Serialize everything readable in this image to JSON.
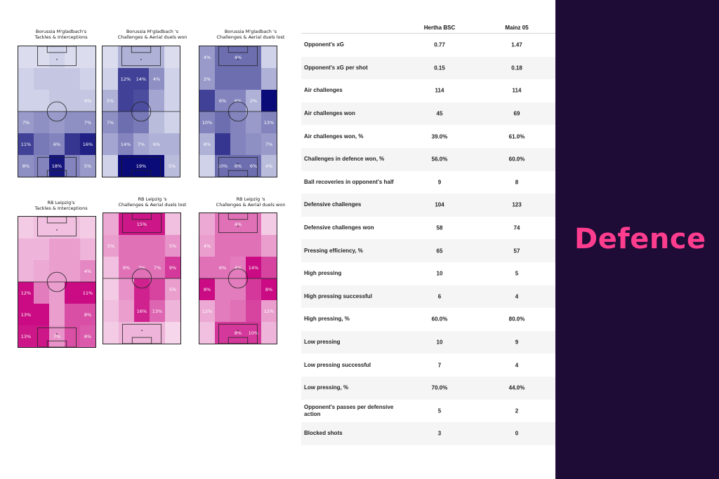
{
  "heatmaps": [
    {
      "title_1": "Borussia M'gladbach's",
      "title_2": "Tackles & Interceptions",
      "palette": "blue",
      "levels": [
        [
          0.05,
          0.05,
          0.1,
          0.05,
          0.05
        ],
        [
          0.1,
          0.15,
          0.15,
          0.15,
          0.1
        ],
        [
          0.1,
          0.1,
          0.15,
          0.15,
          0.15
        ],
        [
          0.35,
          0.4,
          0.35,
          0.4,
          0.4
        ],
        [
          0.75,
          0.5,
          0.45,
          0.8,
          0.9
        ],
        [
          0.4,
          0.45,
          0.95,
          0.45,
          0.35
        ]
      ],
      "labels": [
        [
          "",
          "",
          "",
          "",
          ""
        ],
        [
          "",
          "",
          "",
          "",
          ""
        ],
        [
          "",
          "",
          "",
          "",
          "4%"
        ],
        [
          "7%",
          "",
          "",
          "",
          "7%"
        ],
        [
          "11%",
          "",
          "6%",
          "",
          "16%"
        ],
        [
          "8%",
          "",
          "18%",
          "",
          "5%"
        ]
      ]
    },
    {
      "title_1": "Borussia M'gladbach 's",
      "title_2": "Challenges & Aerial duels won",
      "palette": "blue",
      "levels": [
        [
          0.05,
          0.25,
          0.25,
          0.25,
          0.05
        ],
        [
          0.1,
          0.75,
          0.75,
          0.4,
          0.1
        ],
        [
          0.25,
          0.75,
          0.7,
          0.3,
          0.1
        ],
        [
          0.4,
          0.55,
          0.5,
          0.2,
          0.1
        ],
        [
          0.3,
          0.45,
          0.3,
          0.25,
          0.25
        ],
        [
          0.1,
          1.0,
          1.0,
          1.0,
          0.2
        ]
      ],
      "labels": [
        [
          "",
          "",
          "",
          "",
          ""
        ],
        [
          "",
          "12%",
          "14%",
          "4%",
          ""
        ],
        [
          "5%",
          "",
          "",
          "",
          ""
        ],
        [
          "7%",
          "",
          "",
          "",
          ""
        ],
        [
          "",
          "14%",
          "7%",
          "6%",
          ""
        ],
        [
          "",
          "",
          "19%",
          "",
          "5%"
        ]
      ]
    },
    {
      "title_1": "Borussia M'gladbach 's",
      "title_2": "Challenges & Aerial duels lost",
      "palette": "blue",
      "levels": [
        [
          0.35,
          0.55,
          0.55,
          0.55,
          0.1
        ],
        [
          0.35,
          0.55,
          0.55,
          0.55,
          0.25
        ],
        [
          0.75,
          0.45,
          0.45,
          0.25,
          1.0
        ],
        [
          0.45,
          0.55,
          0.45,
          0.35,
          0.45
        ],
        [
          0.25,
          0.8,
          0.45,
          0.4,
          0.35
        ],
        [
          0.1,
          0.55,
          0.55,
          0.55,
          0.2
        ]
      ],
      "labels": [
        [
          "4%",
          "",
          "4%",
          "",
          ""
        ],
        [
          "2%",
          "",
          "",
          "",
          ""
        ],
        [
          "",
          "6%",
          "6%",
          "2%",
          ""
        ],
        [
          "10%",
          "",
          "",
          "",
          "13%"
        ],
        [
          "8%",
          "",
          "",
          "",
          "7%"
        ],
        [
          "",
          "10%",
          "6%",
          "6%",
          "4%"
        ]
      ]
    },
    {
      "title_1": "RB Leipzig's",
      "title_2": "Tackles & Interceptions",
      "palette": "pink",
      "levels": [
        [
          0.1,
          0.15,
          0.15,
          0.15,
          0.1
        ],
        [
          0.2,
          0.2,
          0.3,
          0.3,
          0.2
        ],
        [
          0.2,
          0.25,
          0.3,
          0.3,
          0.4
        ],
        [
          0.95,
          0.45,
          0.3,
          0.95,
          0.95
        ],
        [
          0.95,
          0.95,
          0.3,
          0.65,
          0.65
        ],
        [
          0.9,
          0.9,
          0.35,
          0.65,
          0.6
        ],
        [
          0.1,
          0.3,
          0.45,
          0.3,
          0.1
        ]
      ],
      "labels": [
        [
          "",
          "",
          "",
          "",
          ""
        ],
        [
          "",
          "",
          "",
          "",
          ""
        ],
        [
          "",
          "",
          "",
          "",
          "4%"
        ],
        [
          "12%",
          "",
          "",
          "",
          "11%"
        ],
        [
          "13%",
          "",
          "",
          "",
          "8%"
        ],
        [
          "13%",
          "",
          "7%",
          "",
          "8%"
        ],
        [
          "",
          "",
          "",
          "",
          ""
        ]
      ]
    },
    {
      "title_1": "RB Leipzig 's",
      "title_2": "Challenges & Aerial duels lost",
      "palette": "pink",
      "levels": [
        [
          0.25,
          0.9,
          0.9,
          0.9,
          0.15
        ],
        [
          0.3,
          0.5,
          0.5,
          0.5,
          0.35
        ],
        [
          0.15,
          0.5,
          0.5,
          0.5,
          0.75
        ],
        [
          0.1,
          0.35,
          0.85,
          0.7,
          0.3
        ],
        [
          0.15,
          0.3,
          0.85,
          0.55,
          0.2
        ],
        [
          0.1,
          0.2,
          0.2,
          0.2,
          0.05
        ]
      ],
      "labels": [
        [
          "",
          "",
          "15%",
          "",
          ""
        ],
        [
          "5%",
          "",
          "",
          "",
          "5%"
        ],
        [
          "",
          "9%",
          "7%",
          "7%",
          "9%"
        ],
        [
          "",
          "",
          "",
          "",
          "5%"
        ],
        [
          "",
          "",
          "16%",
          "13%",
          ""
        ],
        [
          "",
          "",
          "",
          "",
          ""
        ]
      ]
    },
    {
      "title_1": "RB Leipzig 's",
      "title_2": "Challenges & Aerial duels won",
      "palette": "pink",
      "levels": [
        [
          0.25,
          0.5,
          0.5,
          0.5,
          0.1
        ],
        [
          0.3,
          0.5,
          0.5,
          0.5,
          0.3
        ],
        [
          0.5,
          0.5,
          0.45,
          0.95,
          0.7
        ],
        [
          0.95,
          0.45,
          0.45,
          0.75,
          0.95
        ],
        [
          0.25,
          0.45,
          0.5,
          0.7,
          0.3
        ],
        [
          0.15,
          0.75,
          0.75,
          0.75,
          0.2
        ]
      ],
      "labels": [
        [
          "",
          "",
          "4%",
          "",
          ""
        ],
        [
          "4%",
          "",
          "",
          "",
          ""
        ],
        [
          "",
          "6%",
          "4%",
          "14%",
          ""
        ],
        [
          "8%",
          "",
          "",
          "",
          "8%"
        ],
        [
          "12%",
          "",
          "",
          "",
          "12%"
        ],
        [
          "",
          "",
          "8%",
          "10%",
          ""
        ]
      ]
    }
  ],
  "table": {
    "columns": [
      "Hertha BSC",
      "Mainz 05"
    ],
    "rows": [
      {
        "label": "Opponent's xG",
        "a": "0.77",
        "b": "1.47"
      },
      {
        "label": "Opponent's xG per shot",
        "a": "0.15",
        "b": "0.18"
      },
      {
        "label": "Air challenges",
        "a": "114",
        "b": "114"
      },
      {
        "label": "Air challenges won",
        "a": "45",
        "b": "69"
      },
      {
        "label": "Air challenges won, %",
        "a": "39.0%",
        "b": "61.0%"
      },
      {
        "label": "Challenges in defence won, %",
        "a": "56.0%",
        "b": "60.0%"
      },
      {
        "label": "Ball recoveries in opponent's half",
        "a": "9",
        "b": "8"
      },
      {
        "label": "Defensive challenges",
        "a": "104",
        "b": "123"
      },
      {
        "label": "Defensive challenges won",
        "a": "58",
        "b": "74"
      },
      {
        "label": "Pressing efficiency, %",
        "a": "65",
        "b": "57"
      },
      {
        "label": "High pressing",
        "a": "10",
        "b": "5"
      },
      {
        "label": "High pressing successful",
        "a": "6",
        "b": "4"
      },
      {
        "label": "High pressing, %",
        "a": "60.0%",
        "b": "80.0%"
      },
      {
        "label": "Low pressing",
        "a": "10",
        "b": "9"
      },
      {
        "label": "Low pressing successful",
        "a": "7",
        "b": "4"
      },
      {
        "label": "Low pressing, %",
        "a": "70.0%",
        "b": "44.0%"
      },
      {
        "label": "Opponent's passes per defensive action",
        "a": "5",
        "b": "2"
      },
      {
        "label": "Blocked shots",
        "a": "3",
        "b": "0"
      }
    ]
  },
  "side": {
    "title": "Defence",
    "background": "#1e0b36",
    "accent": "#ff3d8f"
  }
}
